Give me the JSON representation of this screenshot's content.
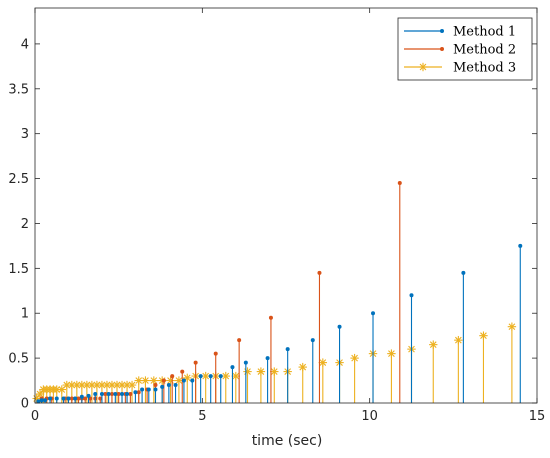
{
  "chart_data": {
    "type": "stem",
    "xlabel": "time (sec)",
    "ylabel": "",
    "xlim": [
      0,
      15
    ],
    "ylim": [
      0,
      4.4
    ],
    "xticks": [
      0,
      5,
      10,
      15
    ],
    "yticks": [
      0,
      0.5,
      1,
      1.5,
      2,
      2.5,
      3,
      3.5,
      4
    ],
    "legend_position": "top-right",
    "series": [
      {
        "name": "Method 1",
        "color": "#0072bd",
        "marker": "dot",
        "points": [
          [
            0.1,
            0.02
          ],
          [
            0.2,
            0.03
          ],
          [
            0.3,
            0.03
          ],
          [
            0.45,
            0.05
          ],
          [
            0.65,
            0.05
          ],
          [
            0.85,
            0.05
          ],
          [
            1.0,
            0.05
          ],
          [
            1.2,
            0.05
          ],
          [
            1.4,
            0.07
          ],
          [
            1.6,
            0.08
          ],
          [
            1.8,
            0.1
          ],
          [
            2.0,
            0.1
          ],
          [
            2.2,
            0.1
          ],
          [
            2.4,
            0.1
          ],
          [
            2.6,
            0.1
          ],
          [
            2.75,
            0.1
          ],
          [
            3.0,
            0.12
          ],
          [
            3.2,
            0.15
          ],
          [
            3.4,
            0.15
          ],
          [
            3.6,
            0.15
          ],
          [
            3.8,
            0.18
          ],
          [
            4.0,
            0.2
          ],
          [
            4.2,
            0.2
          ],
          [
            4.45,
            0.25
          ],
          [
            4.7,
            0.25
          ],
          [
            4.95,
            0.3
          ],
          [
            5.25,
            0.3
          ],
          [
            5.55,
            0.3
          ],
          [
            5.9,
            0.4
          ],
          [
            6.3,
            0.45
          ],
          [
            6.95,
            0.5
          ],
          [
            7.55,
            0.6
          ],
          [
            8.3,
            0.7
          ],
          [
            9.1,
            0.85
          ],
          [
            10.1,
            1.0
          ],
          [
            11.25,
            1.2
          ],
          [
            12.8,
            1.45
          ],
          [
            14.5,
            1.75
          ]
        ]
      },
      {
        "name": "Method 2",
        "color": "#d95319",
        "marker": "dot",
        "points": [
          [
            0.2,
            0.05
          ],
          [
            0.35,
            0.05
          ],
          [
            0.5,
            0.05
          ],
          [
            0.9,
            0.05
          ],
          [
            1.0,
            0.05
          ],
          [
            1.1,
            0.05
          ],
          [
            1.2,
            0.05
          ],
          [
            1.3,
            0.05
          ],
          [
            1.4,
            0.05
          ],
          [
            1.5,
            0.05
          ],
          [
            1.65,
            0.05
          ],
          [
            1.8,
            0.05
          ],
          [
            1.95,
            0.05
          ],
          [
            2.1,
            0.1
          ],
          [
            2.3,
            0.1
          ],
          [
            2.5,
            0.1
          ],
          [
            2.7,
            0.1
          ],
          [
            2.85,
            0.1
          ],
          [
            3.1,
            0.12
          ],
          [
            3.35,
            0.15
          ],
          [
            3.6,
            0.2
          ],
          [
            3.85,
            0.25
          ],
          [
            4.1,
            0.3
          ],
          [
            4.4,
            0.35
          ],
          [
            4.8,
            0.45
          ],
          [
            5.4,
            0.55
          ],
          [
            6.1,
            0.7
          ],
          [
            7.05,
            0.95
          ],
          [
            8.5,
            1.45
          ],
          [
            10.9,
            2.45
          ]
        ]
      },
      {
        "name": "Method 3",
        "color": "#edb120",
        "marker": "asterisk",
        "points": [
          [
            0.05,
            0.05
          ],
          [
            0.15,
            0.1
          ],
          [
            0.25,
            0.15
          ],
          [
            0.35,
            0.15
          ],
          [
            0.45,
            0.15
          ],
          [
            0.55,
            0.15
          ],
          [
            0.65,
            0.15
          ],
          [
            0.8,
            0.15
          ],
          [
            0.95,
            0.2
          ],
          [
            1.1,
            0.2
          ],
          [
            1.25,
            0.2
          ],
          [
            1.4,
            0.2
          ],
          [
            1.55,
            0.2
          ],
          [
            1.7,
            0.2
          ],
          [
            1.85,
            0.2
          ],
          [
            2.0,
            0.2
          ],
          [
            2.15,
            0.2
          ],
          [
            2.3,
            0.2
          ],
          [
            2.45,
            0.2
          ],
          [
            2.6,
            0.2
          ],
          [
            2.75,
            0.2
          ],
          [
            2.9,
            0.2
          ],
          [
            3.1,
            0.25
          ],
          [
            3.3,
            0.25
          ],
          [
            3.55,
            0.25
          ],
          [
            3.8,
            0.25
          ],
          [
            4.05,
            0.25
          ],
          [
            4.3,
            0.25
          ],
          [
            4.55,
            0.28
          ],
          [
            4.8,
            0.3
          ],
          [
            5.1,
            0.3
          ],
          [
            5.4,
            0.3
          ],
          [
            5.7,
            0.3
          ],
          [
            6.0,
            0.3
          ],
          [
            6.35,
            0.35
          ],
          [
            6.75,
            0.35
          ],
          [
            7.15,
            0.35
          ],
          [
            7.55,
            0.35
          ],
          [
            8.0,
            0.4
          ],
          [
            8.6,
            0.45
          ],
          [
            9.1,
            0.45
          ],
          [
            9.55,
            0.5
          ],
          [
            10.1,
            0.55
          ],
          [
            10.65,
            0.55
          ],
          [
            11.25,
            0.6
          ],
          [
            11.9,
            0.65
          ],
          [
            12.65,
            0.7
          ],
          [
            13.4,
            0.75
          ],
          [
            14.25,
            0.85
          ]
        ]
      }
    ]
  }
}
